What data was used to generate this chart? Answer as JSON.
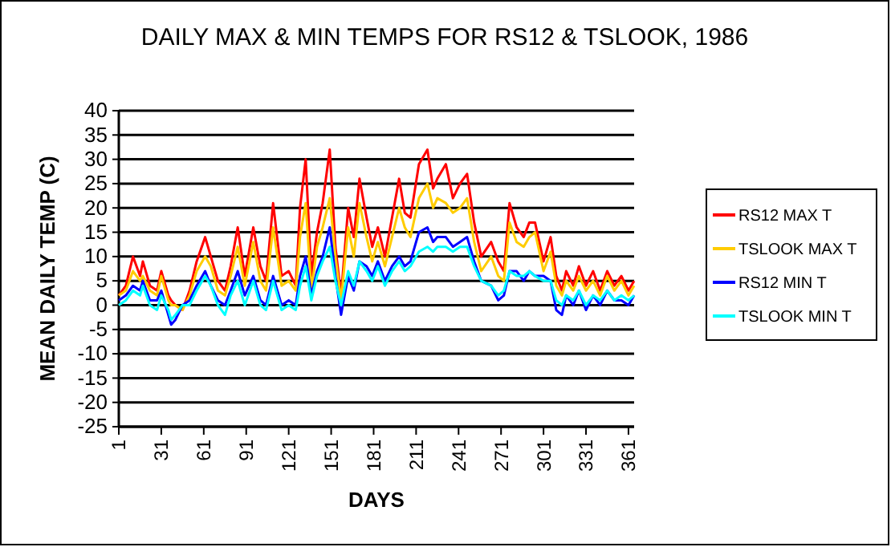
{
  "chart_data": {
    "type": "line",
    "title": "DAILY MAX & MIN TEMPS FOR RS12 & TSLOOK, 1986",
    "xlabel": "DAYS",
    "ylabel": "MEAN DAILY TEMP (C)",
    "x": [
      1,
      6,
      11,
      16,
      18,
      23,
      28,
      31,
      36,
      38,
      41,
      46,
      51,
      56,
      62,
      66,
      71,
      76,
      80,
      85,
      90,
      96,
      101,
      105,
      110,
      116,
      121,
      126,
      129,
      133,
      137,
      141,
      145,
      150,
      154,
      158,
      163,
      167,
      171,
      176,
      180,
      184,
      189,
      194,
      199,
      203,
      207,
      213,
      219,
      223,
      226,
      232,
      237,
      242,
      247,
      252,
      257,
      264,
      269,
      273,
      277,
      282,
      287,
      291,
      295,
      301,
      306,
      310,
      314,
      317,
      322,
      326,
      331,
      336,
      341,
      346,
      351,
      356,
      361,
      365
    ],
    "series": [
      {
        "name": "RS12 MAX T",
        "color": "#ff0000",
        "values": [
          2,
          4,
          10,
          6,
          9,
          4,
          3,
          7,
          2,
          1,
          0,
          -1,
          3,
          9,
          14,
          10,
          5,
          3,
          8,
          16,
          6,
          16,
          8,
          5,
          21,
          6,
          7,
          4,
          20,
          30,
          6,
          15,
          21,
          32,
          12,
          2,
          20,
          14,
          26,
          18,
          12,
          16,
          10,
          18,
          26,
          19,
          18,
          29,
          32,
          24,
          26,
          29,
          22,
          25,
          27,
          17,
          10,
          13,
          9,
          7,
          21,
          16,
          14,
          17,
          17,
          9,
          14,
          6,
          3,
          7,
          4,
          8,
          4,
          7,
          3,
          7,
          4,
          6,
          3,
          5
        ]
      },
      {
        "name": "TSLOOK MAX T",
        "color": "#ffcc00",
        "values": [
          2,
          3,
          7,
          5,
          6,
          3,
          2,
          6,
          1,
          0,
          0,
          -1,
          2,
          7,
          10,
          8,
          3,
          2,
          6,
          12,
          4,
          13,
          5,
          3,
          16,
          4,
          5,
          3,
          14,
          21,
          3,
          12,
          16,
          22,
          10,
          1,
          16,
          10,
          21,
          14,
          9,
          13,
          8,
          14,
          20,
          16,
          14,
          22,
          25,
          20,
          22,
          21,
          19,
          20,
          22,
          13,
          7,
          10,
          6,
          5,
          17,
          13,
          12,
          14,
          15,
          7,
          11,
          4,
          2,
          5,
          3,
          6,
          3,
          5,
          2,
          6,
          3,
          5,
          2,
          4
        ]
      },
      {
        "name": "RS12 MIN T",
        "color": "#0000ff",
        "values": [
          1,
          2,
          4,
          3,
          5,
          1,
          1,
          3,
          -2,
          -4,
          -3,
          0,
          1,
          4,
          7,
          4,
          1,
          0,
          3,
          7,
          2,
          6,
          1,
          0,
          6,
          0,
          1,
          0,
          6,
          10,
          2,
          7,
          10,
          16,
          6,
          -2,
          6,
          3,
          9,
          8,
          6,
          9,
          5,
          8,
          10,
          8,
          9,
          15,
          16,
          13,
          14,
          14,
          12,
          13,
          14,
          9,
          5,
          4,
          1,
          2,
          7,
          7,
          5,
          7,
          6,
          6,
          5,
          -1,
          -2,
          2,
          0,
          3,
          -1,
          2,
          0,
          3,
          1,
          1,
          0,
          2
        ]
      },
      {
        "name": "TSLOOK MIN T",
        "color": "#00ffff",
        "values": [
          0,
          1,
          3,
          2,
          4,
          0,
          -1,
          2,
          -1,
          -3,
          -2,
          0,
          0,
          3,
          6,
          4,
          0,
          -2,
          2,
          5,
          0,
          5,
          0,
          -1,
          5,
          -1,
          0,
          -1,
          4,
          8,
          1,
          6,
          9,
          12,
          5,
          0,
          7,
          4,
          9,
          7,
          5,
          8,
          4,
          7,
          9,
          7,
          8,
          11,
          12,
          11,
          12,
          12,
          11,
          12,
          12,
          8,
          5,
          4,
          2,
          3,
          7,
          6,
          6,
          7,
          6,
          5,
          5,
          1,
          0,
          2,
          1,
          3,
          0,
          2,
          1,
          3,
          1,
          2,
          1,
          2
        ]
      }
    ],
    "xlim": [
      1,
      365
    ],
    "ylim": [
      -25,
      40
    ],
    "xticks": [
      1,
      31,
      61,
      91,
      121,
      151,
      181,
      211,
      241,
      271,
      301,
      331,
      361
    ],
    "yticks": [
      -25,
      -20,
      -15,
      -10,
      -5,
      0,
      5,
      10,
      15,
      20,
      25,
      30,
      35,
      40
    ],
    "grid": "y",
    "legend": "right",
    "line_style": "solid",
    "marker": "none"
  }
}
